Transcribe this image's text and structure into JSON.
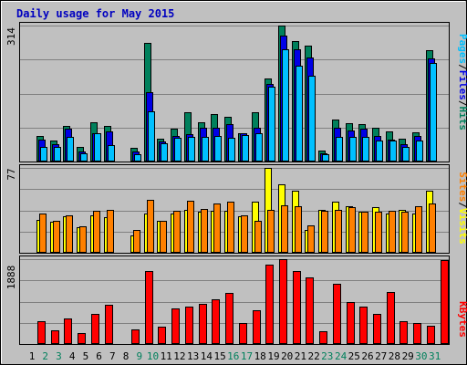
{
  "colors": {
    "background": "#c0c0c0",
    "panel_line": "#808080",
    "frame_dark": "#000000",
    "frame_light": "#ffffff",
    "title": "#0000c0",
    "hits": "#00805c",
    "files": "#0000e6",
    "pages": "#00c0ff",
    "visits": "#ffff00",
    "sites": "#ff8000",
    "kbytes": "#ff0000",
    "day_weekday": "#000000",
    "day_weekend": "#00805c"
  },
  "chart_data": {
    "type": "bar",
    "title": "Daily usage for May 2015",
    "categories": [
      "1",
      "2",
      "3",
      "4",
      "5",
      "6",
      "7",
      "8",
      "9",
      "10",
      "11",
      "12",
      "13",
      "14",
      "15",
      "16",
      "17",
      "18",
      "19",
      "20",
      "21",
      "22",
      "23",
      "24",
      "25",
      "26",
      "27",
      "28",
      "29",
      "30",
      "31"
    ],
    "weekend_days": [
      "2",
      "3",
      "9",
      "10",
      "16",
      "17",
      "23",
      "24",
      "30",
      "31"
    ],
    "panels": [
      {
        "id": "hits-files-pages",
        "max_label": "314",
        "ylim": [
          0,
          314
        ],
        "legend": [
          "Pages",
          "/",
          "Files",
          "/",
          "Hits"
        ],
        "legend_colors": [
          "pages",
          "text",
          "files",
          "text",
          "hits"
        ],
        "series": [
          {
            "name": "Hits",
            "color_key": "hits",
            "values": [
              60,
              48,
              83,
              33,
              91,
              82,
              0,
              32,
              274,
              53,
              75,
              113,
              90,
              110,
              104,
              66,
              113,
              192,
              314,
              278,
              268,
              25,
              97,
              88,
              86,
              77,
              70,
              53,
              67,
              258,
              0
            ]
          },
          {
            "name": "Files",
            "color_key": "files",
            "values": [
              50,
              40,
              76,
              24,
              66,
              70,
              0,
              23,
              161,
              46,
              60,
              63,
              77,
              78,
              87,
              66,
              79,
              180,
              291,
              259,
              240,
              20,
              78,
              71,
              75,
              59,
              51,
              40,
              58,
              238,
              0
            ]
          },
          {
            "name": "Pages",
            "color_key": "pages",
            "values": [
              34,
              34,
              56,
              20,
              66,
              38,
              0,
              17,
              116,
              42,
              55,
              57,
              57,
              58,
              55,
              61,
              66,
              172,
              260,
              222,
              198,
              16,
              57,
              57,
              57,
              48,
              49,
              33,
              48,
              228,
              0
            ]
          }
        ]
      },
      {
        "id": "visits-sites",
        "max_label": "77",
        "ylim": [
          0,
          77
        ],
        "legend": [
          "Sites",
          "/",
          "Visits"
        ],
        "legend_colors": [
          "sites",
          "text",
          "visits"
        ],
        "series": [
          {
            "name": "Visits",
            "color_key": "visits",
            "values": [
              30,
              28,
              33,
              23,
              34,
              32,
              0,
              16,
              36,
              29,
              36,
              39,
              37,
              38,
              38,
              33,
              46,
              77,
              62,
              56,
              21,
              39,
              46,
              42,
              37,
              41,
              36,
              39,
              36,
              56,
              0
            ]
          },
          {
            "name": "Sites",
            "color_key": "sites",
            "values": [
              36,
              29,
              34,
              24,
              38,
              39,
              0,
              21,
              48,
              29,
              38,
              47,
              40,
              45,
              46,
              34,
              29,
              39,
              43,
              42,
              25,
              38,
              39,
              41,
              37,
              37,
              38,
              37,
              42,
              45,
              0
            ]
          }
        ]
      },
      {
        "id": "kbytes",
        "max_label": "1888",
        "ylim": [
          0,
          1888
        ],
        "legend": [
          "KBytes"
        ],
        "legend_colors": [
          "kbytes"
        ],
        "series": [
          {
            "name": "KBytes",
            "color_key": "kbytes",
            "values": [
              500,
              300,
              570,
              250,
              680,
              880,
              0,
              330,
              1620,
              390,
              790,
              840,
              890,
              1000,
              1130,
              460,
              760,
              1770,
              1888,
              1620,
              1480,
              280,
              1330,
              940,
              830,
              660,
              1150,
              510,
              460,
              400,
              1860
            ]
          }
        ]
      }
    ]
  }
}
